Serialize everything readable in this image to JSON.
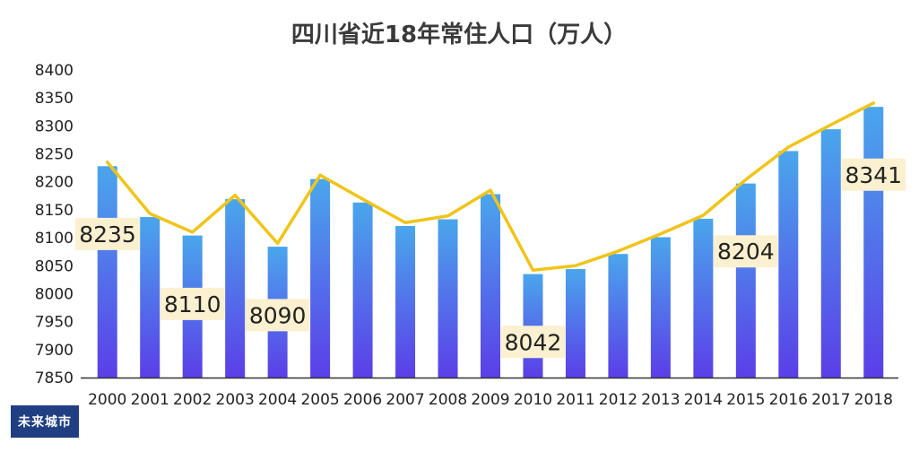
{
  "chart_data": {
    "type": "bar",
    "title": "四川省近18年常住人口（万人）",
    "categories": [
      "2000",
      "2001",
      "2002",
      "2003",
      "2004",
      "2005",
      "2006",
      "2007",
      "2008",
      "2009",
      "2010",
      "2011",
      "2012",
      "2013",
      "2014",
      "2015",
      "2016",
      "2017",
      "2018"
    ],
    "series": [
      {
        "type": "bar",
        "values": [
          8228,
          8137,
          8104,
          8169,
          8084,
          8205,
          8163,
          8121,
          8133,
          8178,
          8035,
          8044,
          8071,
          8101,
          8134,
          8197,
          8255,
          8294,
          8334
        ]
      },
      {
        "type": "line",
        "values": [
          8235,
          8143,
          8110,
          8176,
          8090,
          8212,
          8169,
          8127,
          8139,
          8185,
          8042,
          8050,
          8076,
          8107,
          8140,
          8204,
          8262,
          8302,
          8341
        ]
      }
    ],
    "data_labels": [
      {
        "category": "2000",
        "text": "8235"
      },
      {
        "category": "2002",
        "text": "8110"
      },
      {
        "category": "2004",
        "text": "8090"
      },
      {
        "category": "2010",
        "text": "8042"
      },
      {
        "category": "2015",
        "text": "8204"
      },
      {
        "category": "2018",
        "text": "8341"
      }
    ],
    "ylim": [
      7850,
      8400
    ],
    "yticks": [
      7850,
      7900,
      7950,
      8000,
      8050,
      8100,
      8150,
      8200,
      8250,
      8300,
      8350,
      8400
    ],
    "grid": false,
    "colors": {
      "bar_top": "#4aa6ec",
      "bar_bottom": "#5b3ee8",
      "line": "#f0c419",
      "label_bg": "#fbf0cf",
      "axis": "#333333"
    }
  },
  "watermark": {
    "text": "未来城市",
    "bg": "#1f3f82"
  }
}
